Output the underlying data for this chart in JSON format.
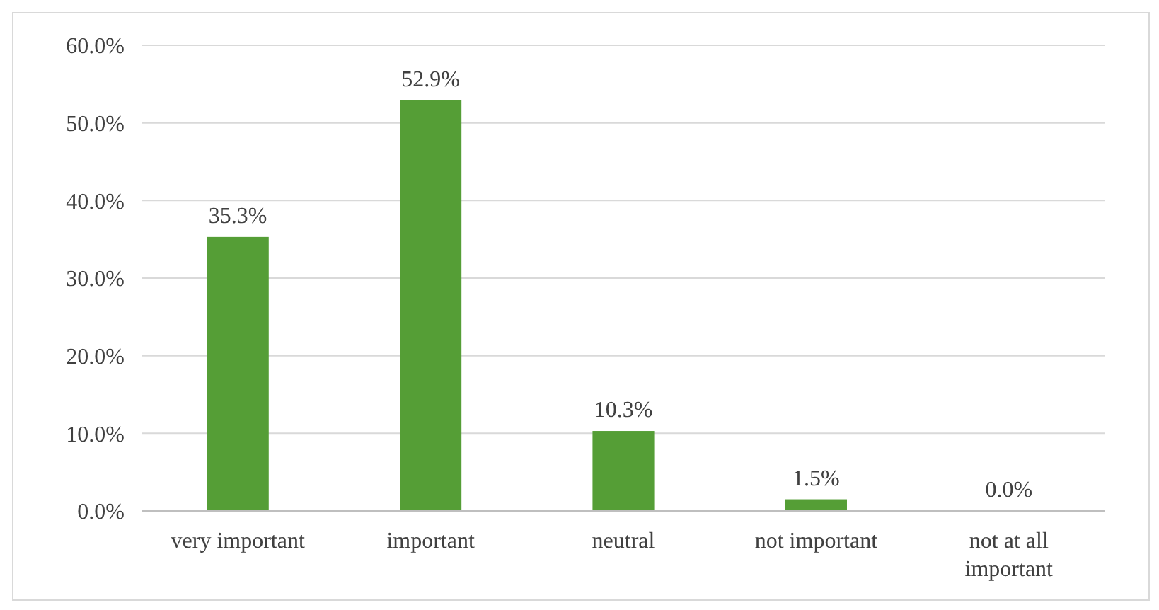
{
  "chart_data": {
    "type": "bar",
    "categories": [
      "very important",
      "important",
      "neutral",
      "not important",
      "not at all important"
    ],
    "values": [
      35.3,
      52.9,
      10.3,
      1.5,
      0.0
    ],
    "value_labels": [
      "35.3%",
      "52.9%",
      "10.3%",
      "1.5%",
      "0.0%"
    ],
    "color": "#559e36",
    "ylim": [
      0,
      60
    ],
    "yticks": [
      {
        "value": 0,
        "label": "0.0%"
      },
      {
        "value": 10,
        "label": "10.0%"
      },
      {
        "value": 20,
        "label": "20.0%"
      },
      {
        "value": 30,
        "label": "30.0%"
      },
      {
        "value": 40,
        "label": "40.0%"
      },
      {
        "value": 50,
        "label": "50.0%"
      },
      {
        "value": 60,
        "label": "60.0%"
      }
    ],
    "grid": "y"
  }
}
